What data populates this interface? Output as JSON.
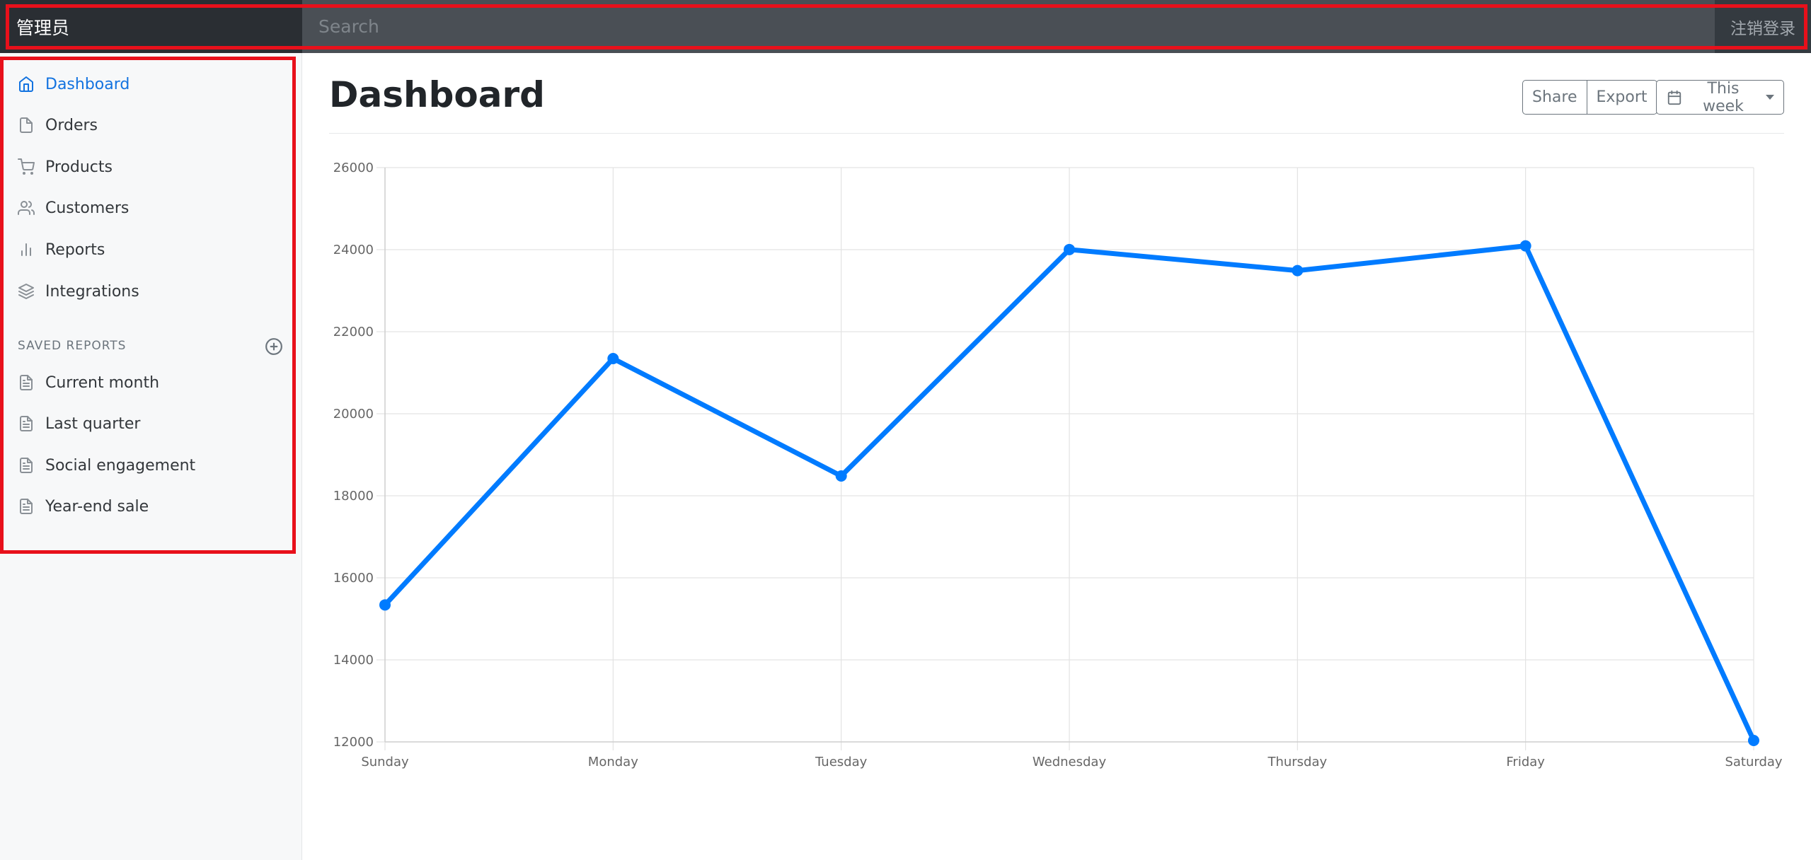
{
  "navbar": {
    "brand": "管理员",
    "search_placeholder": "Search",
    "signout": "注销登录"
  },
  "sidebar": {
    "items": [
      {
        "label": "Dashboard",
        "icon": "home-icon",
        "active": true
      },
      {
        "label": "Orders",
        "icon": "file-icon",
        "active": false
      },
      {
        "label": "Products",
        "icon": "shopping-cart-icon",
        "active": false
      },
      {
        "label": "Customers",
        "icon": "users-icon",
        "active": false
      },
      {
        "label": "Reports",
        "icon": "bar-chart-icon",
        "active": false
      },
      {
        "label": "Integrations",
        "icon": "layers-icon",
        "active": false
      }
    ],
    "saved_heading": "SAVED REPORTS",
    "saved_reports": [
      {
        "label": "Current month",
        "icon": "file-text-icon"
      },
      {
        "label": "Last quarter",
        "icon": "file-text-icon"
      },
      {
        "label": "Social engagement",
        "icon": "file-text-icon"
      },
      {
        "label": "Year-end sale",
        "icon": "file-text-icon"
      }
    ]
  },
  "main": {
    "title": "Dashboard",
    "share_label": "Share",
    "export_label": "Export",
    "period_label": "This week"
  },
  "colors": {
    "accent": "#1373e0",
    "line": "#007bff",
    "navbar": "#343a40",
    "highlight": "#e8101b"
  },
  "chart_data": {
    "type": "line",
    "categories": [
      "Sunday",
      "Monday",
      "Tuesday",
      "Wednesday",
      "Thursday",
      "Friday",
      "Saturday"
    ],
    "series": [
      {
        "values": [
          15339,
          21345,
          18483,
          24003,
          23489,
          24092,
          12034
        ]
      }
    ],
    "ylim": [
      12000,
      26000
    ],
    "yticks": [
      12000,
      14000,
      16000,
      18000,
      20000,
      22000,
      24000,
      26000
    ],
    "grid": true,
    "title": "",
    "xlabel": "",
    "ylabel": ""
  }
}
